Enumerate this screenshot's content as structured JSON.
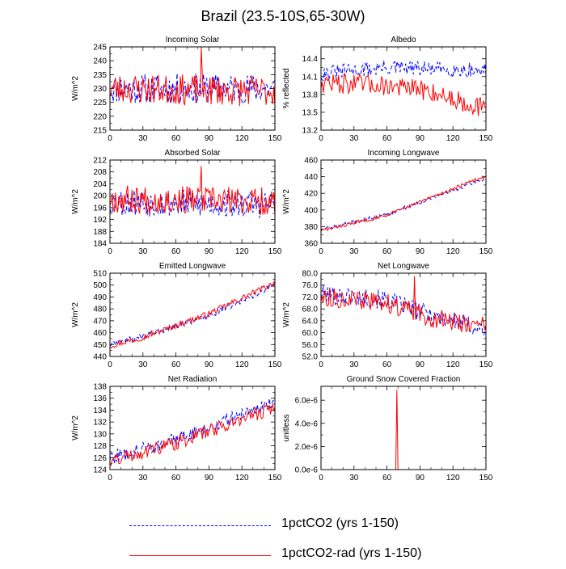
{
  "title": "Brazil (23.5-10S,65-30W)",
  "legend": [
    {
      "label": "1pctCO2 (yrs 1-150)",
      "color": "#0000ff",
      "style": "dashed"
    },
    {
      "label": "1pctCO2-rad (yrs 1-150)",
      "color": "#ff0000",
      "style": "solid"
    }
  ],
  "chart_data": [
    {
      "type": "line",
      "title": "Incoming Solar",
      "ylabel": "W/m^2",
      "xlim": [
        0,
        150
      ],
      "ylim": [
        215,
        245
      ],
      "xticks": [
        0,
        30,
        60,
        90,
        120,
        150
      ],
      "yticks": [
        215,
        220,
        225,
        230,
        235,
        240,
        245
      ],
      "ytick_labels": [
        "215",
        "220",
        "225",
        "230",
        "235",
        "240",
        "245"
      ],
      "series": [
        {
          "trend": [
            [
              0,
              230
            ],
            [
              150,
              230
            ]
          ],
          "noise": 5.5,
          "seed": 11
        },
        {
          "trend": [
            [
              0,
              230
            ],
            [
              150,
              229
            ]
          ],
          "noise": 5.5,
          "seed": 23,
          "spikes": [
            [
              83,
              245
            ]
          ]
        }
      ]
    },
    {
      "type": "line",
      "title": "Albedo",
      "ylabel": "% reflected",
      "xlim": [
        0,
        150
      ],
      "ylim": [
        13.2,
        14.6
      ],
      "xticks": [
        0,
        30,
        60,
        90,
        120,
        150
      ],
      "yticks": [
        13.2,
        13.5,
        13.8,
        14.1,
        14.4
      ],
      "ytick_labels": [
        "13.2",
        "13.5",
        "13.8",
        "14.1",
        "14.4"
      ],
      "series": [
        {
          "trend": [
            [
              0,
              14.15
            ],
            [
              60,
              14.25
            ],
            [
              150,
              14.2
            ]
          ],
          "noise": 0.13,
          "seed": 31
        },
        {
          "trend": [
            [
              0,
              14.0
            ],
            [
              60,
              13.95
            ],
            [
              100,
              13.85
            ],
            [
              150,
              13.55
            ]
          ],
          "noise": 0.17,
          "seed": 47
        }
      ]
    },
    {
      "type": "line",
      "title": "Absorbed Solar",
      "ylabel": "W/m^2",
      "xlim": [
        0,
        150
      ],
      "ylim": [
        184,
        212
      ],
      "xticks": [
        0,
        30,
        60,
        90,
        120,
        150
      ],
      "yticks": [
        184,
        188,
        192,
        196,
        200,
        204,
        208,
        212
      ],
      "ytick_labels": [
        "184",
        "188",
        "192",
        "196",
        "200",
        "204",
        "208",
        "212"
      ],
      "series": [
        {
          "trend": [
            [
              0,
              198
            ],
            [
              150,
              197
            ]
          ],
          "noise": 4.8,
          "seed": 53
        },
        {
          "trend": [
            [
              0,
              199
            ],
            [
              150,
              198
            ]
          ],
          "noise": 4.8,
          "seed": 67,
          "spikes": [
            [
              83,
              210
            ]
          ]
        }
      ]
    },
    {
      "type": "line",
      "title": "Incoming Longwave",
      "ylabel": "W/m^2",
      "xlim": [
        0,
        150
      ],
      "ylim": [
        360,
        460
      ],
      "xticks": [
        0,
        30,
        60,
        90,
        120,
        150
      ],
      "yticks": [
        360,
        380,
        400,
        420,
        440,
        460
      ],
      "ytick_labels": [
        "360",
        "380",
        "400",
        "420",
        "440",
        "460"
      ],
      "series": [
        {
          "trend": [
            [
              0,
              376
            ],
            [
              60,
              395
            ],
            [
              150,
              438
            ]
          ],
          "noise": 2.2,
          "seed": 71
        },
        {
          "trend": [
            [
              0,
              375
            ],
            [
              60,
              394
            ],
            [
              150,
              441
            ]
          ],
          "noise": 2.2,
          "seed": 83
        }
      ]
    },
    {
      "type": "line",
      "title": "Emitted Longwave",
      "ylabel": "W/m^2",
      "xlim": [
        0,
        150
      ],
      "ylim": [
        440,
        510
      ],
      "xticks": [
        0,
        30,
        60,
        90,
        120,
        150
      ],
      "yticks": [
        440,
        450,
        460,
        470,
        480,
        490,
        500,
        510
      ],
      "ytick_labels": [
        "440",
        "450",
        "460",
        "470",
        "480",
        "490",
        "500",
        "510"
      ],
      "series": [
        {
          "trend": [
            [
              0,
              450
            ],
            [
              30,
              457
            ],
            [
              90,
              474
            ],
            [
              150,
              500
            ]
          ],
          "noise": 2.5,
          "seed": 89
        },
        {
          "trend": [
            [
              0,
              449
            ],
            [
              30,
              456
            ],
            [
              90,
              476
            ],
            [
              150,
              502
            ]
          ],
          "noise": 2.5,
          "seed": 97
        }
      ]
    },
    {
      "type": "line",
      "title": "Net Longwave",
      "ylabel": "W/m^2",
      "xlim": [
        0,
        150
      ],
      "ylim": [
        52,
        80
      ],
      "xticks": [
        0,
        30,
        60,
        90,
        120,
        150
      ],
      "yticks": [
        52,
        56,
        60,
        64,
        68,
        72,
        76,
        80
      ],
      "ytick_labels": [
        "52.0",
        "56.0",
        "60.0",
        "64.0",
        "68.0",
        "72.0",
        "76.0",
        "80.0"
      ],
      "series": [
        {
          "trend": [
            [
              0,
              73
            ],
            [
              60,
              71
            ],
            [
              100,
              66
            ],
            [
              150,
              61
            ]
          ],
          "noise": 3.2,
          "seed": 101
        },
        {
          "trend": [
            [
              0,
              72
            ],
            [
              60,
              70
            ],
            [
              100,
              65
            ],
            [
              150,
              62
            ]
          ],
          "noise": 3.2,
          "seed": 113,
          "spikes": [
            [
              85,
              79
            ]
          ]
        }
      ]
    },
    {
      "type": "line",
      "title": "Net Radiation",
      "ylabel": "W/m^2",
      "xlim": [
        0,
        150
      ],
      "ylim": [
        124,
        138
      ],
      "xticks": [
        0,
        30,
        60,
        90,
        120,
        150
      ],
      "yticks": [
        124,
        126,
        128,
        130,
        132,
        134,
        136,
        138
      ],
      "ytick_labels": [
        "124",
        "126",
        "128",
        "130",
        "132",
        "134",
        "136",
        "138"
      ],
      "series": [
        {
          "trend": [
            [
              0,
              126
            ],
            [
              60,
              129
            ],
            [
              150,
              135.5
            ]
          ],
          "noise": 1.2,
          "seed": 127
        },
        {
          "trend": [
            [
              0,
              125.5
            ],
            [
              60,
              128.5
            ],
            [
              150,
              134.5
            ]
          ],
          "noise": 1.2,
          "seed": 131
        }
      ]
    },
    {
      "type": "line",
      "title": "Ground Snow Covered Fraction",
      "ylabel": "unitless",
      "xlim": [
        0,
        150
      ],
      "ylim": [
        0,
        7.2e-06
      ],
      "xticks": [
        0,
        30,
        60,
        90,
        120,
        150
      ],
      "yticks": [
        0,
        2e-06,
        4e-06,
        6e-06
      ],
      "ytick_labels": [
        "0.0e-6",
        "2.0e-6",
        "4.0e-6",
        "6.0e-6"
      ],
      "series": [
        {
          "trend": [
            [
              0,
              0
            ],
            [
              150,
              0
            ]
          ],
          "noise": 0,
          "seed": 1
        },
        {
          "trend": [
            [
              0,
              0
            ],
            [
              150,
              0
            ]
          ],
          "noise": 0,
          "seed": 2,
          "spikes": [
            [
              69,
              6.9e-06
            ]
          ]
        }
      ]
    }
  ]
}
